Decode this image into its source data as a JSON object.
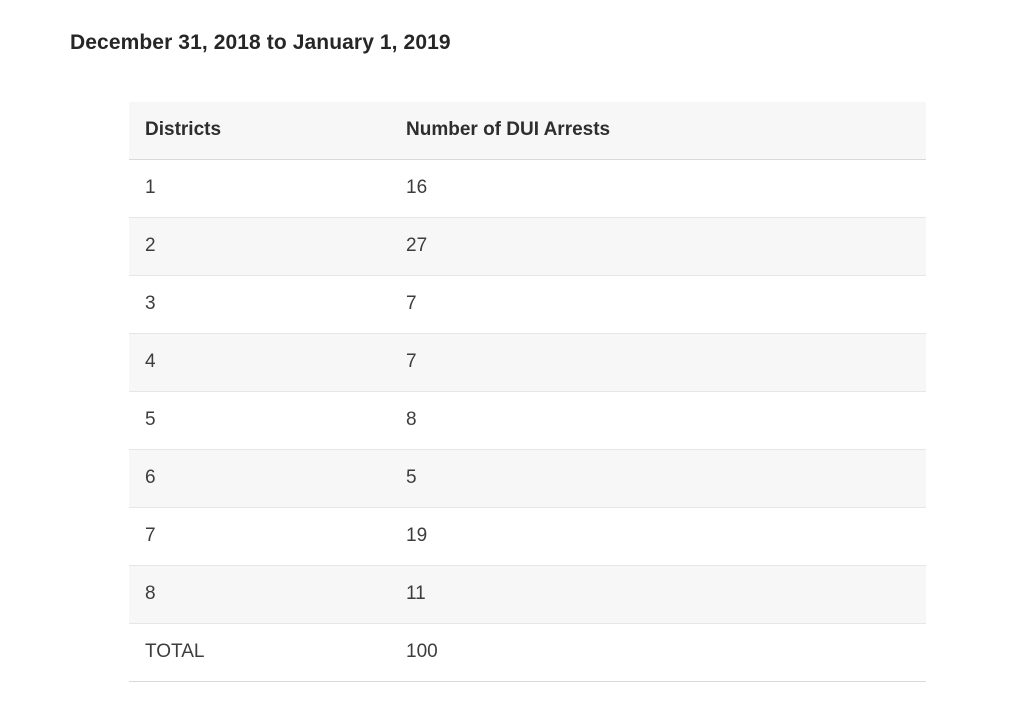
{
  "page_title": "December 31, 2018 to January 1, 2019",
  "table": {
    "columns": {
      "district": "Districts",
      "arrests": "Number of DUI Arrests"
    },
    "rows": [
      {
        "district": "1",
        "arrests": "16"
      },
      {
        "district": "2",
        "arrests": "27"
      },
      {
        "district": "3",
        "arrests": "7"
      },
      {
        "district": "4",
        "arrests": "7"
      },
      {
        "district": "5",
        "arrests": "8"
      },
      {
        "district": "6",
        "arrests": "5"
      },
      {
        "district": "7",
        "arrests": "19"
      },
      {
        "district": "8",
        "arrests": "11"
      },
      {
        "district": "TOTAL",
        "arrests": "100"
      }
    ]
  },
  "chart_data": {
    "type": "table",
    "title": "December 31, 2018 to January 1, 2019",
    "columns": [
      "Districts",
      "Number of DUI Arrests"
    ],
    "categories": [
      "1",
      "2",
      "3",
      "4",
      "5",
      "6",
      "7",
      "8"
    ],
    "values": [
      16,
      27,
      7,
      7,
      8,
      5,
      19,
      11
    ],
    "total_label": "TOTAL",
    "total_value": 100,
    "layout_hints": {
      "zebra_striping": true,
      "striped_rows": "even",
      "header_background": "#f7f7f7",
      "stripe_background": "#f7f7f7",
      "row_border_color": "#e6e6e6",
      "text_color": "#3d3d3d",
      "title_color": "#262626"
    }
  }
}
